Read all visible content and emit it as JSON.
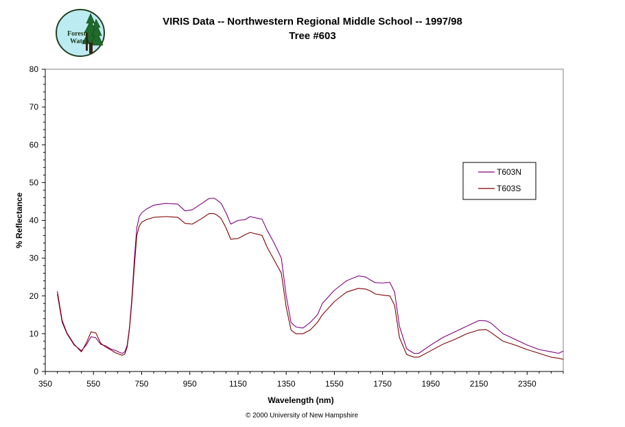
{
  "logo": {
    "text_line1": "Forest",
    "text_line2": "Watch",
    "icon": "forest-watch-logo"
  },
  "copyright": "© 2000 University of New Hampshire",
  "chart_data": {
    "type": "line",
    "title": "VIRIS Data -- Northwestern Regional Middle School -- 1997/98",
    "subtitle": "Tree #603",
    "xlabel": "Wavelength (nm)",
    "ylabel": "% Reflectance",
    "xlim": [
      350,
      2500
    ],
    "ylim": [
      0,
      80
    ],
    "x_ticks": [
      350,
      550,
      750,
      950,
      1150,
      1350,
      1550,
      1750,
      1950,
      2150,
      2350
    ],
    "y_ticks": [
      0,
      10,
      20,
      30,
      40,
      50,
      60,
      70,
      80
    ],
    "grid": false,
    "legend_position": "right",
    "series": [
      {
        "name": "T603N",
        "color": "#800080",
        "x": [
          400,
          420,
          440,
          470,
          490,
          500,
          520,
          540,
          560,
          580,
          600,
          620,
          640,
          660,
          670,
          680,
          690,
          700,
          710,
          720,
          730,
          740,
          750,
          770,
          800,
          850,
          900,
          930,
          960,
          1000,
          1030,
          1050,
          1060,
          1080,
          1100,
          1120,
          1150,
          1180,
          1200,
          1250,
          1270,
          1300,
          1330,
          1350,
          1370,
          1390,
          1420,
          1450,
          1480,
          1500,
          1550,
          1600,
          1650,
          1680,
          1700,
          1720,
          1750,
          1780,
          1800,
          1820,
          1850,
          1880,
          1900,
          1950,
          2000,
          2050,
          2100,
          2150,
          2180,
          2200,
          2250,
          2300,
          2350,
          2400,
          2450,
          2480,
          2500
        ],
        "y": [
          20.5,
          13,
          10,
          7,
          6,
          5.5,
          7,
          9.2,
          8.9,
          7.2,
          6.8,
          6,
          5.6,
          5,
          4.8,
          5.2,
          7,
          12,
          20,
          30,
          38,
          41,
          42,
          43,
          44,
          44.5,
          44.3,
          42.5,
          42.8,
          44.5,
          45.8,
          45.9,
          45.5,
          44.5,
          42,
          39,
          40,
          40.2,
          41,
          40.3,
          37.5,
          34,
          30,
          20,
          13,
          11.8,
          11.5,
          13,
          15,
          18,
          21.5,
          24,
          25.3,
          25,
          24.2,
          23.5,
          23.4,
          23.6,
          21,
          12,
          6,
          4.8,
          4.8,
          7,
          9,
          10.5,
          12,
          13.5,
          13.4,
          12.8,
          10,
          8.5,
          7,
          5.8,
          5.2,
          4.8,
          5.4
        ]
      },
      {
        "name": "T603S",
        "color": "#800000",
        "x": [
          400,
          420,
          440,
          470,
          490,
          500,
          520,
          540,
          560,
          580,
          600,
          620,
          640,
          660,
          670,
          680,
          690,
          700,
          710,
          720,
          730,
          740,
          750,
          770,
          800,
          850,
          900,
          930,
          960,
          1000,
          1030,
          1050,
          1060,
          1080,
          1100,
          1120,
          1150,
          1180,
          1200,
          1250,
          1270,
          1300,
          1330,
          1350,
          1370,
          1390,
          1420,
          1450,
          1480,
          1500,
          1550,
          1600,
          1650,
          1680,
          1700,
          1720,
          1750,
          1780,
          1800,
          1820,
          1850,
          1880,
          1900,
          1950,
          2000,
          2050,
          2100,
          2150,
          2180,
          2200,
          2250,
          2300,
          2350,
          2400,
          2450,
          2480,
          2500
        ],
        "y": [
          21.2,
          13.5,
          10.2,
          7.2,
          5.8,
          5.2,
          7.5,
          10.5,
          10.2,
          7.5,
          6.5,
          5.8,
          5,
          4.5,
          4.3,
          4.6,
          6.5,
          11.5,
          19,
          28,
          36,
          38.5,
          39.5,
          40.2,
          40.8,
          41,
          40.8,
          39.2,
          39,
          40.5,
          41.8,
          41.8,
          41.5,
          40.5,
          38,
          35,
          35.2,
          36.2,
          36.8,
          36,
          33,
          29.5,
          26,
          17,
          11,
          10,
          10,
          11,
          13,
          15,
          18.5,
          21,
          22,
          21.8,
          21.3,
          20.5,
          20.2,
          20,
          17.5,
          9,
          4.5,
          3.8,
          3.8,
          5.5,
          7.2,
          8.5,
          10,
          11,
          11.1,
          10.3,
          8,
          7,
          5.8,
          4.8,
          3.8,
          3.5,
          3.2
        ]
      }
    ]
  }
}
